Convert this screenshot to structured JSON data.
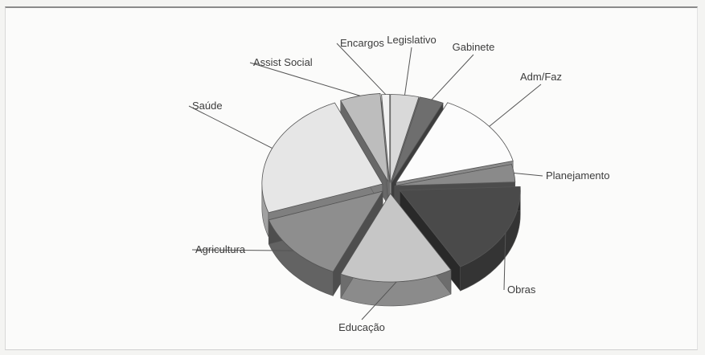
{
  "chart_data": {
    "type": "pie",
    "style": "3d-exploded",
    "title": "",
    "categories": [
      "Legislativo",
      "Gabinete",
      "Adm/Faz",
      "Planejamento",
      "Obras",
      "Educação",
      "Agricultura",
      "Saúde",
      "Assist Social",
      "Encargos"
    ],
    "values": [
      3.5,
      3,
      13,
      3,
      16,
      14,
      12,
      22,
      5,
      1
    ],
    "colors": [
      "#d9d9d9",
      "#6e6e6e",
      "#fcfcfc",
      "#8a8a8a",
      "#4a4a4a",
      "#c6c6c6",
      "#8e8e8e",
      "#e6e6e6",
      "#bdbdbd",
      "#f2f2f2"
    ],
    "legend": "none",
    "grid": false
  }
}
